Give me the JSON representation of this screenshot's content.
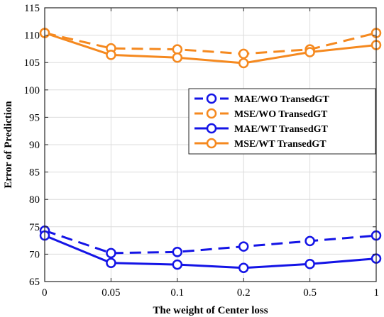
{
  "chart_data": {
    "type": "line",
    "categories": [
      "0",
      "0.05",
      "0.1",
      "0.2",
      "0.5",
      "1"
    ],
    "xlabel": "The weight of Center loss",
    "ylabel": "Error of Prediction",
    "ylim": [
      65,
      115
    ],
    "yticks": [
      65,
      70,
      75,
      80,
      85,
      90,
      95,
      100,
      105,
      110,
      115
    ],
    "grid": true,
    "legend_position": "center-right",
    "series": [
      {
        "name": "MAE/WO TransedGT",
        "values": [
          74.3,
          70.2,
          70.4,
          71.4,
          72.4,
          73.4
        ],
        "color": "#1414e6",
        "dashed": true
      },
      {
        "name": "MSE/WO TransedGT",
        "values": [
          110.4,
          107.6,
          107.4,
          106.6,
          107.4,
          110.4
        ],
        "color": "#f5891f",
        "dashed": true
      },
      {
        "name": "MAE/WT TransedGT",
        "values": [
          73.4,
          68.4,
          68.1,
          67.5,
          68.2,
          69.2
        ],
        "color": "#1414e6",
        "dashed": false
      },
      {
        "name": "MSE/WT TransedGT",
        "values": [
          110.4,
          106.4,
          105.9,
          104.9,
          106.9,
          108.2
        ],
        "color": "#f5891f",
        "dashed": false
      }
    ]
  }
}
